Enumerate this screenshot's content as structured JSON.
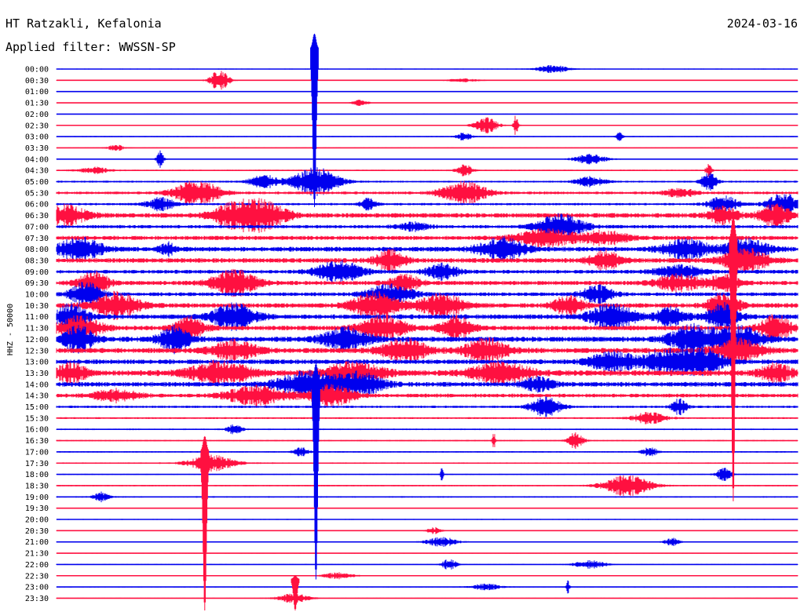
{
  "header": {
    "station": "HT Ratzakli, Kefalonia",
    "date": "2024-03-16",
    "filter": "Applied filter: WWSSN-SP"
  },
  "colors": {
    "odd": "#0000ee",
    "even": "#ff1040"
  },
  "chart_data": {
    "type": "line",
    "ylabel": "HHZ - 50000",
    "y_tick_labels": [
      "00:00",
      "00:30",
      "01:00",
      "01:30",
      "02:00",
      "02:30",
      "03:00",
      "03:30",
      "04:00",
      "04:30",
      "05:00",
      "05:30",
      "06:00",
      "06:30",
      "07:00",
      "07:30",
      "08:00",
      "08:30",
      "09:00",
      "09:30",
      "10:00",
      "10:30",
      "11:00",
      "11:30",
      "12:00",
      "12:30",
      "13:00",
      "13:30",
      "14:00",
      "14:30",
      "15:00",
      "15:30",
      "16:00",
      "16:30",
      "17:00",
      "17:30",
      "18:00",
      "18:30",
      "19:00",
      "19:30",
      "20:00",
      "20:30",
      "21:00",
      "21:30",
      "22:00",
      "22:30",
      "23:00",
      "23:30"
    ],
    "series": [
      {
        "noise": 1.0,
        "events": [
          [
            0.67,
            5,
            0.02
          ]
        ]
      },
      {
        "noise": 1.0,
        "events": [
          [
            0.22,
            14,
            0.012
          ],
          [
            0.55,
            2,
            0.02
          ]
        ]
      },
      {
        "noise": 0.8,
        "events": []
      },
      {
        "noise": 0.8,
        "events": [
          [
            0.41,
            4,
            0.01
          ]
        ]
      },
      {
        "noise": 0.8,
        "events": []
      },
      {
        "noise": 1.2,
        "events": [
          [
            0.58,
            10,
            0.015
          ],
          [
            0.62,
            14,
            0.003
          ]
        ]
      },
      {
        "noise": 1.2,
        "events": [
          [
            0.76,
            6,
            0.004
          ],
          [
            0.55,
            5,
            0.01
          ]
        ]
      },
      {
        "noise": 1.0,
        "events": [
          [
            0.08,
            4,
            0.01
          ]
        ]
      },
      {
        "noise": 1.2,
        "events": [
          [
            0.14,
            14,
            0.004
          ],
          [
            0.72,
            6,
            0.02
          ]
        ]
      },
      {
        "noise": 1.5,
        "events": [
          [
            0.05,
            4,
            0.02
          ],
          [
            0.55,
            8,
            0.01
          ],
          [
            0.88,
            8,
            0.004
          ]
        ]
      },
      {
        "noise": 2.0,
        "events": [
          [
            0.28,
            8,
            0.02
          ],
          [
            0.35,
            18,
            0.03
          ],
          [
            0.72,
            6,
            0.02
          ],
          [
            0.88,
            12,
            0.01
          ]
        ]
      },
      {
        "noise": 3.0,
        "events": [
          [
            0.19,
            16,
            0.03
          ],
          [
            0.55,
            14,
            0.03
          ],
          [
            0.84,
            6,
            0.02
          ]
        ]
      },
      {
        "noise": 2.5,
        "events": [
          [
            0.14,
            8,
            0.02
          ],
          [
            0.42,
            8,
            0.01
          ],
          [
            0.9,
            10,
            0.02
          ],
          [
            0.98,
            14,
            0.02
          ]
        ]
      },
      {
        "noise": 5.0,
        "events": [
          [
            0.01,
            12,
            0.03
          ],
          [
            0.24,
            14,
            0.03
          ],
          [
            0.28,
            16,
            0.03
          ],
          [
            0.9,
            10,
            0.02
          ],
          [
            0.97,
            14,
            0.02
          ]
        ]
      },
      {
        "noise": 3.5,
        "events": [
          [
            0.68,
            16,
            0.03
          ],
          [
            0.48,
            5,
            0.02
          ]
        ]
      },
      {
        "noise": 4.5,
        "events": [
          [
            0.66,
            10,
            0.04
          ],
          [
            0.74,
            8,
            0.03
          ]
        ]
      },
      {
        "noise": 5.0,
        "events": [
          [
            0.03,
            14,
            0.03
          ],
          [
            0.15,
            8,
            0.01
          ],
          [
            0.6,
            14,
            0.03
          ],
          [
            0.85,
            12,
            0.03
          ],
          [
            0.93,
            12,
            0.03
          ]
        ]
      },
      {
        "noise": 5.0,
        "events": [
          [
            0.45,
            12,
            0.02
          ],
          [
            0.74,
            12,
            0.02
          ],
          [
            0.93,
            14,
            0.03
          ]
        ]
      },
      {
        "noise": 4.0,
        "events": [
          [
            0.38,
            14,
            0.03
          ],
          [
            0.52,
            10,
            0.02
          ],
          [
            0.84,
            8,
            0.03
          ]
        ]
      },
      {
        "noise": 4.5,
        "events": [
          [
            0.05,
            14,
            0.02
          ],
          [
            0.24,
            16,
            0.03
          ],
          [
            0.47,
            10,
            0.02
          ],
          [
            0.84,
            10,
            0.03
          ],
          [
            0.9,
            10,
            0.02
          ]
        ]
      },
      {
        "noise": 4.0,
        "events": [
          [
            0.04,
            16,
            0.02
          ],
          [
            0.45,
            12,
            0.03
          ],
          [
            0.73,
            12,
            0.02
          ]
        ]
      },
      {
        "noise": 5.0,
        "events": [
          [
            0.08,
            16,
            0.03
          ],
          [
            0.43,
            16,
            0.03
          ],
          [
            0.52,
            14,
            0.03
          ],
          [
            0.69,
            12,
            0.02
          ],
          [
            0.9,
            16,
            0.02
          ]
        ]
      },
      {
        "noise": 5.0,
        "events": [
          [
            0.02,
            16,
            0.02
          ],
          [
            0.24,
            16,
            0.03
          ],
          [
            0.75,
            16,
            0.03
          ],
          [
            0.83,
            12,
            0.02
          ],
          [
            0.9,
            18,
            0.02
          ]
        ]
      },
      {
        "noise": 5.0,
        "events": [
          [
            0.03,
            14,
            0.03
          ],
          [
            0.18,
            14,
            0.02
          ],
          [
            0.44,
            16,
            0.03
          ],
          [
            0.54,
            14,
            0.02
          ],
          [
            0.97,
            16,
            0.02
          ]
        ]
      },
      {
        "noise": 5.5,
        "events": [
          [
            0.03,
            16,
            0.02
          ],
          [
            0.16,
            16,
            0.02
          ],
          [
            0.39,
            14,
            0.03
          ],
          [
            0.86,
            18,
            0.03
          ],
          [
            0.92,
            16,
            0.03
          ]
        ]
      },
      {
        "noise": 5.5,
        "events": [
          [
            0.24,
            12,
            0.03
          ],
          [
            0.47,
            14,
            0.03
          ],
          [
            0.58,
            14,
            0.03
          ],
          [
            0.92,
            14,
            0.03
          ]
        ]
      },
      {
        "noise": 5.0,
        "events": [
          [
            0.75,
            12,
            0.03
          ],
          [
            0.82,
            14,
            0.03
          ],
          [
            0.87,
            16,
            0.03
          ]
        ]
      },
      {
        "noise": 6.0,
        "events": [
          [
            0.02,
            12,
            0.02
          ],
          [
            0.22,
            14,
            0.04
          ],
          [
            0.4,
            12,
            0.04
          ],
          [
            0.6,
            12,
            0.04
          ],
          [
            0.97,
            12,
            0.02
          ]
        ]
      },
      {
        "noise": 5.0,
        "events": [
          [
            0.34,
            16,
            0.04
          ],
          [
            0.41,
            14,
            0.03
          ],
          [
            0.65,
            8,
            0.02
          ]
        ]
      },
      {
        "noise": 4.0,
        "events": [
          [
            0.08,
            8,
            0.03
          ],
          [
            0.27,
            12,
            0.04
          ],
          [
            0.37,
            14,
            0.03
          ]
        ]
      },
      {
        "noise": 2.5,
        "events": [
          [
            0.66,
            12,
            0.02
          ],
          [
            0.84,
            10,
            0.01
          ]
        ]
      },
      {
        "noise": 2.0,
        "events": [
          [
            0.8,
            8,
            0.02
          ]
        ]
      },
      {
        "noise": 1.5,
        "events": [
          [
            0.24,
            6,
            0.01
          ]
        ]
      },
      {
        "noise": 1.5,
        "events": [
          [
            0.7,
            10,
            0.01
          ],
          [
            0.59,
            10,
            0.002
          ]
        ]
      },
      {
        "noise": 1.5,
        "events": [
          [
            0.33,
            6,
            0.01
          ],
          [
            0.8,
            6,
            0.01
          ]
        ]
      },
      {
        "noise": 1.5,
        "events": [
          [
            0.21,
            10,
            0.03
          ]
        ]
      },
      {
        "noise": 1.2,
        "events": [
          [
            0.9,
            8,
            0.01
          ],
          [
            0.52,
            10,
            0.002
          ]
        ]
      },
      {
        "noise": 1.5,
        "events": [
          [
            0.77,
            14,
            0.03
          ]
        ]
      },
      {
        "noise": 1.5,
        "events": [
          [
            0.06,
            6,
            0.01
          ]
        ]
      },
      {
        "noise": 1.0,
        "events": []
      },
      {
        "noise": 1.0,
        "events": []
      },
      {
        "noise": 1.0,
        "events": [
          [
            0.51,
            4,
            0.01
          ]
        ]
      },
      {
        "noise": 1.0,
        "events": [
          [
            0.52,
            6,
            0.02
          ],
          [
            0.83,
            5,
            0.01
          ]
        ]
      },
      {
        "noise": 1.0,
        "events": []
      },
      {
        "noise": 1.0,
        "events": [
          [
            0.53,
            7,
            0.01
          ],
          [
            0.72,
            5,
            0.02
          ]
        ]
      },
      {
        "noise": 1.0,
        "events": [
          [
            0.38,
            4,
            0.02
          ]
        ]
      },
      {
        "noise": 1.0,
        "events": [
          [
            0.58,
            4,
            0.02
          ],
          [
            0.69,
            10,
            0.002
          ]
        ]
      },
      {
        "noise": 1.0,
        "events": [
          [
            0.32,
            6,
            0.02
          ]
        ]
      }
    ],
    "spikes": [
      {
        "trace": 0,
        "x": 0.348,
        "amp": 45,
        "trace_end": 11,
        "color": "odd"
      },
      {
        "trace": 27,
        "x": 0.35,
        "amp": 12,
        "trace_end": 45,
        "color": "odd"
      },
      {
        "trace": 34,
        "x": 0.2,
        "amp": 20,
        "trace_end": 48,
        "color": "even"
      },
      {
        "trace": 46,
        "x": 0.322,
        "amp": 14,
        "trace_end": 48,
        "color": "even"
      },
      {
        "trace": 14,
        "x": 0.913,
        "amp": 14,
        "trace_end": 38,
        "color": "even"
      }
    ]
  }
}
